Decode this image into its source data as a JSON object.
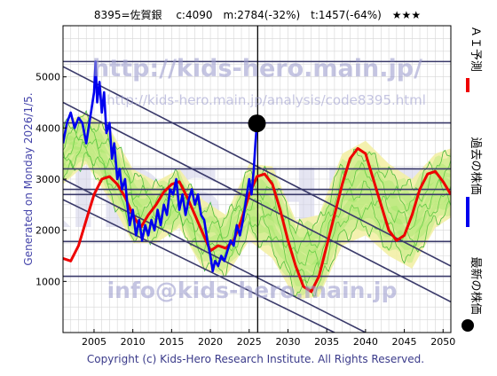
{
  "header": {
    "title": "8395=佐賀銀　 c:4090　m:2784(-32%)　t:1457(-64%)　★★★"
  },
  "side_label": "Generated on Monday 2026/1/5.",
  "footer": "Copyright (c) Kids-Hero Research Institute. All Rights Reserved.",
  "watermarks": {
    "url": "http://kids-hero.main.jp/",
    "url_small": "http://kids-hero.main.jp/analysis/code8395.html",
    "big": "KIDS HERO",
    "email": "info@kids-hero.main.jp"
  },
  "legend": {
    "ai": "ＡＩ予測",
    "past": "過去の株価",
    "latest": "最新の株価"
  },
  "colors": {
    "ai": "#ee0000",
    "past": "#0000ee",
    "latest": "#000000",
    "band_fill": "#f3f0a6",
    "band_green": "#22aa22",
    "grid_line": "#3a3a6a",
    "watermark": "#9f9fcf"
  },
  "chart_data": {
    "type": "line",
    "xlim": [
      2001,
      2051
    ],
    "ylim": [
      0,
      6000
    ],
    "xticks": [
      2005,
      2010,
      2015,
      2020,
      2025,
      2030,
      2035,
      2040,
      2045,
      2050
    ],
    "yticks": [
      1000,
      2000,
      3000,
      4000,
      5000
    ],
    "hlines": [
      5300,
      4100,
      3200,
      2800,
      2700,
      1780,
      1100
    ],
    "vline": 2026.1,
    "diagonals": [
      {
        "x0": 2001,
        "y0": 5200,
        "x1": 2051,
        "y1": 1300
      },
      {
        "x0": 2001,
        "y0": 4500,
        "x1": 2051,
        "y1": 600
      },
      {
        "x0": 2001,
        "y0": 3000,
        "x1": 2040,
        "y1": 0
      },
      {
        "x0": 2001,
        "y0": 2600,
        "x1": 2036,
        "y1": 0
      }
    ],
    "latest_point": {
      "x": 2026.0,
      "y": 4090
    },
    "series": [
      {
        "name": "過去の株価",
        "x": [
          2001.0,
          2001.5,
          2002.0,
          2002.5,
          2003.0,
          2003.5,
          2004.0,
          2004.3,
          2004.6,
          2005.0,
          2005.2,
          2005.4,
          2005.7,
          2006.0,
          2006.3,
          2006.6,
          2007.0,
          2007.3,
          2007.6,
          2008.0,
          2008.3,
          2008.6,
          2009.0,
          2009.3,
          2009.6,
          2010.0,
          2010.4,
          2010.8,
          2011.2,
          2011.6,
          2012.0,
          2012.4,
          2012.8,
          2013.2,
          2013.6,
          2014.0,
          2014.4,
          2014.8,
          2015.2,
          2015.6,
          2016.0,
          2016.4,
          2016.8,
          2017.2,
          2017.6,
          2018.0,
          2018.4,
          2018.8,
          2019.2,
          2019.6,
          2020.0,
          2020.3,
          2020.6,
          2021.0,
          2021.4,
          2021.8,
          2022.2,
          2022.6,
          2023.0,
          2023.4,
          2023.8,
          2024.2,
          2024.6,
          2025.0,
          2025.3,
          2025.6,
          2025.8,
          2026.0
        ],
        "y": [
          3700,
          4100,
          4300,
          4000,
          4200,
          4100,
          3700,
          4000,
          4300,
          4700,
          5300,
          4500,
          4900,
          4300,
          4700,
          3900,
          4100,
          3400,
          3700,
          3000,
          3200,
          2800,
          3000,
          2500,
          2100,
          2400,
          1900,
          2200,
          1800,
          2100,
          1900,
          2200,
          2000,
          2400,
          2100,
          2500,
          2300,
          2800,
          2700,
          3000,
          2400,
          2700,
          2300,
          2600,
          2800,
          2500,
          2700,
          2300,
          2200,
          1800,
          1500,
          1200,
          1400,
          1300,
          1500,
          1400,
          1600,
          1800,
          1700,
          2100,
          1900,
          2200,
          2600,
          3000,
          2700,
          3200,
          3700,
          4090
        ]
      },
      {
        "name": "ＡＩ予測",
        "x": [
          2001,
          2002,
          2003,
          2004,
          2005,
          2006,
          2007,
          2008,
          2009,
          2010,
          2011,
          2012,
          2013,
          2014,
          2015,
          2016,
          2017,
          2018,
          2019,
          2020,
          2021,
          2022,
          2023,
          2024,
          2025,
          2026,
          2027,
          2028,
          2029,
          2030,
          2031,
          2032,
          2033,
          2034,
          2035,
          2036,
          2037,
          2038,
          2039,
          2040,
          2041,
          2042,
          2043,
          2044,
          2045,
          2046,
          2047,
          2048,
          2049,
          2050,
          2051
        ],
        "y": [
          1450,
          1400,
          1700,
          2200,
          2700,
          3000,
          3050,
          2900,
          2650,
          2300,
          2050,
          2300,
          2500,
          2750,
          2900,
          2950,
          2650,
          2300,
          1950,
          1600,
          1700,
          1650,
          1800,
          2200,
          2700,
          3050,
          3100,
          2900,
          2400,
          1800,
          1300,
          900,
          800,
          1100,
          1700,
          2300,
          2900,
          3400,
          3600,
          3500,
          3000,
          2500,
          2000,
          1800,
          1900,
          2300,
          2800,
          3100,
          3150,
          2950,
          2700
        ]
      },
      {
        "name": "band_upper",
        "x": [
          2001,
          2004,
          2007,
          2010,
          2013,
          2016,
          2019,
          2022,
          2025,
          2028,
          2031,
          2034,
          2037,
          2040,
          2043,
          2046,
          2049,
          2051
        ],
        "y": [
          4100,
          4300,
          4000,
          3200,
          2950,
          3200,
          2600,
          2300,
          3300,
          3250,
          2200,
          2300,
          3500,
          3750,
          3300,
          3000,
          3500,
          3600
        ]
      },
      {
        "name": "band_lower",
        "x": [
          2001,
          2004,
          2007,
          2010,
          2013,
          2016,
          2019,
          2022,
          2025,
          2028,
          2031,
          2034,
          2037,
          2040,
          2043,
          2046,
          2049,
          2051
        ],
        "y": [
          2900,
          3300,
          2600,
          1750,
          1750,
          2050,
          1250,
          1100,
          1800,
          1450,
          650,
          700,
          1700,
          1900,
          1500,
          1250,
          2050,
          2250
        ]
      }
    ]
  }
}
